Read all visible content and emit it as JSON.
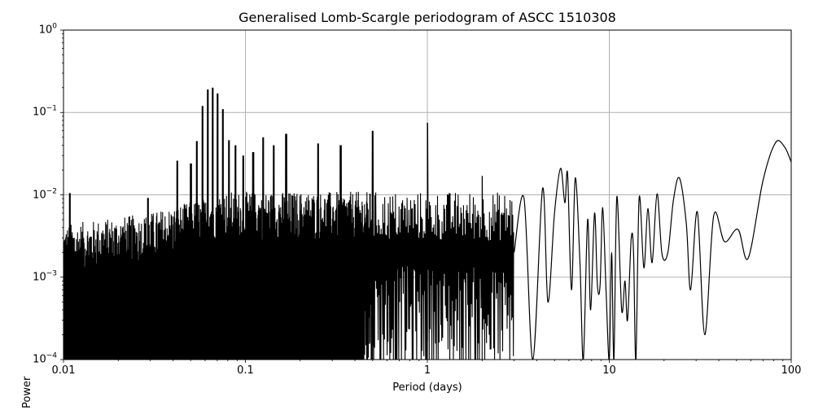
{
  "chart_data": {
    "type": "line",
    "title": "Generalised Lomb-Scargle periodogram of ASCC 1510308",
    "xlabel": "Period (days)",
    "ylabel": "Power",
    "xscale": "log",
    "yscale": "log",
    "xlim": [
      0.01,
      100
    ],
    "ylim": [
      0.0001,
      1
    ],
    "grid": true,
    "legend": null,
    "xticks": [
      {
        "value": 0.01,
        "label": "0.01"
      },
      {
        "value": 0.1,
        "label": "0.1"
      },
      {
        "value": 1,
        "label": "1"
      },
      {
        "value": 10,
        "label": "10"
      },
      {
        "value": 100,
        "label": "100"
      }
    ],
    "yticks": [
      {
        "value": 1,
        "base": "10",
        "exp": "0"
      },
      {
        "value": 0.1,
        "base": "10",
        "exp": "−1"
      },
      {
        "value": 0.01,
        "base": "10",
        "exp": "−2"
      },
      {
        "value": 0.001,
        "base": "10",
        "exp": "−3"
      },
      {
        "value": 0.0001,
        "base": "10",
        "exp": "−4"
      }
    ],
    "line_color": "#000000",
    "grid_color": "#b0b0b0",
    "notable_peaks": [
      {
        "period": 0.0108,
        "power": 0.0105
      },
      {
        "period": 0.029,
        "power": 0.0092
      },
      {
        "period": 0.042,
        "power": 0.026
      },
      {
        "period": 0.05,
        "power": 0.024
      },
      {
        "period": 0.054,
        "power": 0.045
      },
      {
        "period": 0.058,
        "power": 0.12
      },
      {
        "period": 0.062,
        "power": 0.19
      },
      {
        "period": 0.066,
        "power": 0.2
      },
      {
        "period": 0.07,
        "power": 0.17
      },
      {
        "period": 0.075,
        "power": 0.11
      },
      {
        "period": 0.081,
        "power": 0.046
      },
      {
        "period": 0.088,
        "power": 0.04
      },
      {
        "period": 0.097,
        "power": 0.03
      },
      {
        "period": 0.11,
        "power": 0.033
      },
      {
        "period": 0.125,
        "power": 0.05
      },
      {
        "period": 0.143,
        "power": 0.04
      },
      {
        "period": 0.167,
        "power": 0.055
      },
      {
        "period": 0.25,
        "power": 0.042
      },
      {
        "period": 0.333,
        "power": 0.04
      },
      {
        "period": 0.5,
        "power": 0.06
      },
      {
        "period": 1.0,
        "power": 0.075
      },
      {
        "period": 2.0,
        "power": 0.017
      },
      {
        "period": 5.4,
        "power": 0.021
      },
      {
        "period": 11.0,
        "power": 0.0095
      },
      {
        "period": 14.5,
        "power": 0.0095
      },
      {
        "period": 18.0,
        "power": 0.0105
      },
      {
        "period": 24.0,
        "power": 0.016
      },
      {
        "period": 31.0,
        "power": 0.0063
      },
      {
        "period": 38.0,
        "power": 0.0056
      },
      {
        "period": 52.0,
        "power": 0.0037
      },
      {
        "period": 83.0,
        "power": 0.043
      },
      {
        "period": 100.0,
        "power": 0.025
      }
    ],
    "smooth_tail": [
      [
        3.0,
        0.002
      ],
      [
        3.4,
        0.009
      ],
      [
        3.8,
        0.0001
      ],
      [
        4.3,
        0.012
      ],
      [
        4.6,
        0.0005
      ],
      [
        5.0,
        0.006
      ],
      [
        5.4,
        0.021
      ],
      [
        5.7,
        0.008
      ],
      [
        5.9,
        0.018
      ],
      [
        6.2,
        0.0007
      ],
      [
        6.5,
        0.016
      ],
      [
        6.9,
        0.0015
      ],
      [
        7.2,
        0.0001
      ],
      [
        7.6,
        0.005
      ],
      [
        7.9,
        0.0004
      ],
      [
        8.3,
        0.006
      ],
      [
        8.6,
        0.0008
      ],
      [
        8.9,
        0.0008
      ],
      [
        9.2,
        0.007
      ],
      [
        9.6,
        0.0007
      ],
      [
        10.0,
        0.0001
      ],
      [
        10.3,
        0.002
      ],
      [
        10.6,
        0.0001
      ],
      [
        11.0,
        0.0095
      ],
      [
        11.7,
        0.0004
      ],
      [
        12.2,
        0.0009
      ],
      [
        12.6,
        0.0003
      ],
      [
        13.2,
        0.0029
      ],
      [
        13.6,
        0.002
      ],
      [
        14.0,
        0.0001
      ],
      [
        14.6,
        0.0092
      ],
      [
        15.5,
        0.0013
      ],
      [
        16.3,
        0.0068
      ],
      [
        17.2,
        0.0015
      ],
      [
        18.3,
        0.0103
      ],
      [
        19.5,
        0.0019
      ],
      [
        21.0,
        0.002
      ],
      [
        22.5,
        0.0085
      ],
      [
        24.3,
        0.016
      ],
      [
        26.5,
        0.0045
      ],
      [
        28.0,
        0.0007
      ],
      [
        30.5,
        0.0062
      ],
      [
        33.5,
        0.0002
      ],
      [
        37.5,
        0.0056
      ],
      [
        43.0,
        0.0027
      ],
      [
        51.0,
        0.0038
      ],
      [
        58.0,
        0.0017
      ],
      [
        70.0,
        0.015
      ],
      [
        82.0,
        0.043
      ],
      [
        92.0,
        0.038
      ],
      [
        100.0,
        0.025
      ]
    ]
  }
}
